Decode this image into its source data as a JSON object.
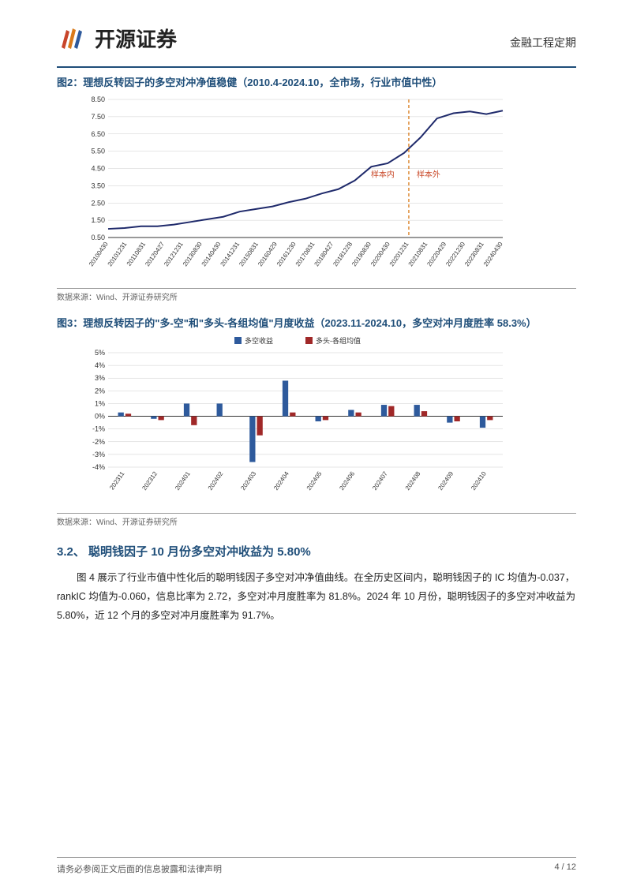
{
  "header": {
    "company": "开源证券",
    "doc_type": "金融工程定期"
  },
  "fig2": {
    "title": "图2：理想反转因子的多空对冲净值稳健（2010.4-2024.10，全市场，行业市值中性）",
    "type": "line",
    "background_color": "#ffffff",
    "grid_color": "#cccccc",
    "axis_color": "#333333",
    "line_color": "#1f2a6b",
    "line_width": 2,
    "divider_color": "#d97a1a",
    "anno_color": "#c94a2a",
    "ylim": [
      0.5,
      8.5
    ],
    "yticks": [
      0.5,
      1.5,
      2.5,
      3.5,
      4.5,
      5.5,
      6.5,
      7.5,
      8.5
    ],
    "x_labels": [
      "20100430",
      "20101231",
      "20110831",
      "20120427",
      "20121231",
      "20130830",
      "20140430",
      "20141231",
      "20150831",
      "20160429",
      "20161230",
      "20170831",
      "20180427",
      "20181228",
      "20190830",
      "20200430",
      "20201231",
      "20210831",
      "20220429",
      "20221230",
      "20230831",
      "20240430"
    ],
    "x_label_fontsize": 8,
    "y_label_fontsize": 9,
    "anno_in": "样本内",
    "anno_out": "样本外",
    "divider_x_index": 16,
    "values": [
      1.0,
      1.05,
      1.15,
      1.15,
      1.25,
      1.4,
      1.55,
      1.7,
      2.0,
      2.15,
      2.3,
      2.55,
      2.75,
      3.05,
      3.3,
      3.8,
      4.6,
      4.8,
      5.4,
      6.3,
      7.4,
      7.7,
      7.8,
      7.65,
      7.85
    ],
    "source": "数据来源：Wind、开源证券研究所"
  },
  "fig3": {
    "title": "图3：理想反转因子的\"多-空\"和\"多头-各组均值\"月度收益（2023.11-2024.10，多空对冲月度胜率 58.3%）",
    "type": "bar",
    "background_color": "#ffffff",
    "grid_color": "#cccccc",
    "axis_color": "#333333",
    "colors": {
      "long_short": "#2e5a9c",
      "long_mean": "#a02828"
    },
    "legend": {
      "long_short": "多空收益",
      "long_mean": "多头-各组均值"
    },
    "legend_fontsize": 9,
    "ylim": [
      -4,
      5
    ],
    "yticks": [
      "-4%",
      "-3%",
      "-2%",
      "-1%",
      "0%",
      "1%",
      "2%",
      "3%",
      "4%",
      "5%"
    ],
    "bar_width": 0.35,
    "categories": [
      "202311",
      "202312",
      "202401",
      "202402",
      "202403",
      "202404",
      "202405",
      "202406",
      "202407",
      "202408",
      "202409",
      "202410"
    ],
    "series_long_short": [
      0.3,
      -0.2,
      1.0,
      1.0,
      -3.6,
      2.8,
      -0.4,
      0.5,
      0.9,
      0.9,
      -0.5,
      -0.9
    ],
    "series_long_mean": [
      0.2,
      -0.3,
      -0.7,
      0.0,
      -1.5,
      0.3,
      -0.3,
      0.3,
      0.8,
      0.4,
      -0.4,
      -0.3
    ],
    "source": "数据来源：Wind、开源证券研究所"
  },
  "section": {
    "number": "3.2、",
    "title": "聪明钱因子 10 月份多空对冲收益为 5.80%",
    "body": "图 4 展示了行业市值中性化后的聪明钱因子多空对冲净值曲线。在全历史区间内，聪明钱因子的 IC 均值为-0.037，rankIC 均值为-0.060，信息比率为 2.72，多空对冲月度胜率为 81.8%。2024 年 10 月份，聪明钱因子的多空对冲收益为 5.80%，近 12 个月的多空对冲月度胜率为 91.7%。"
  },
  "footer": {
    "disclaimer": "请务必参阅正文后面的信息披露和法律声明",
    "page": "4 / 12"
  }
}
